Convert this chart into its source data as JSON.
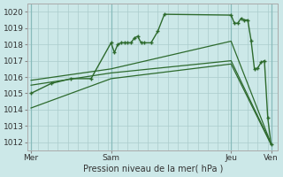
{
  "background_color": "#cce8e8",
  "grid_color": "#aacccc",
  "line_color": "#2d6a2d",
  "xlabel": "Pression niveau de la mer( hPa )",
  "ylim": [
    1011.5,
    1020.5
  ],
  "yticks": [
    1012,
    1013,
    1014,
    1015,
    1016,
    1017,
    1018,
    1019,
    1020
  ],
  "xtick_labels": [
    "Mer",
    "Sam",
    "Jeu",
    "Ven"
  ],
  "xtick_positions": [
    0,
    24,
    60,
    72
  ],
  "vline_positions": [
    0,
    24,
    60,
    72
  ],
  "series1_x": [
    0,
    6,
    12,
    18,
    24,
    25,
    26,
    27,
    28,
    29,
    30,
    31,
    32,
    33,
    34,
    36,
    38,
    40,
    60,
    61,
    62,
    63,
    64,
    65,
    66,
    67,
    68,
    69,
    70,
    71,
    72
  ],
  "series1_y": [
    1015.0,
    1015.6,
    1015.9,
    1015.9,
    1018.1,
    1017.5,
    1018.0,
    1018.1,
    1018.1,
    1018.1,
    1018.1,
    1018.4,
    1018.5,
    1018.1,
    1018.1,
    1018.1,
    1018.8,
    1019.85,
    1019.8,
    1019.3,
    1019.3,
    1019.6,
    1019.5,
    1019.5,
    1018.25,
    1016.5,
    1016.55,
    1016.9,
    1017.0,
    1013.5,
    1011.85
  ],
  "series2_x": [
    0,
    24,
    60,
    72
  ],
  "series2_y": [
    1015.8,
    1016.5,
    1018.2,
    1011.9
  ],
  "series3_x": [
    0,
    24,
    60,
    72
  ],
  "series3_y": [
    1015.5,
    1016.25,
    1017.0,
    1011.9
  ],
  "series4_x": [
    0,
    24,
    60,
    72
  ],
  "series4_y": [
    1014.1,
    1015.9,
    1016.8,
    1011.85
  ],
  "xlim": [
    -1,
    74
  ]
}
